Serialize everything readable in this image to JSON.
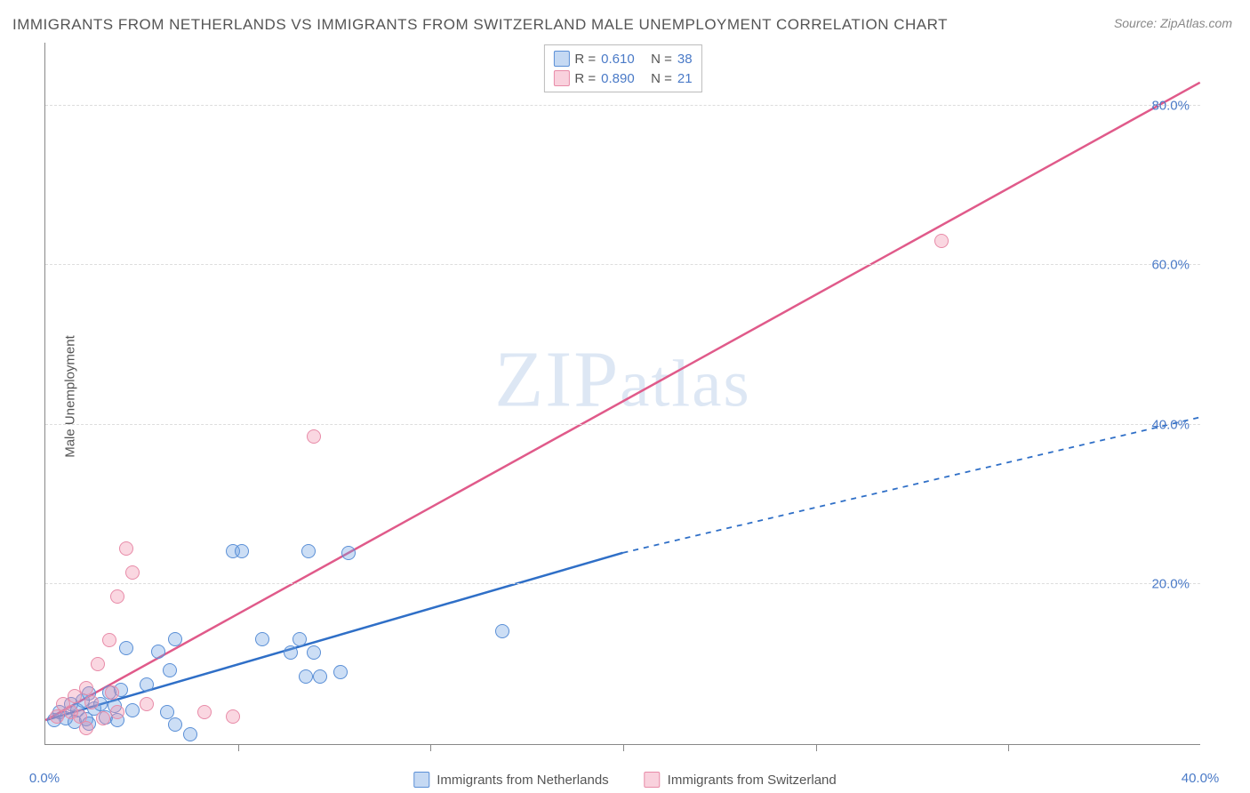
{
  "title": "IMMIGRANTS FROM NETHERLANDS VS IMMIGRANTS FROM SWITZERLAND MALE UNEMPLOYMENT CORRELATION CHART",
  "source": "Source: ZipAtlas.com",
  "watermark": "ZIPatlas",
  "chart": {
    "type": "scatter-with-regression",
    "ylabel": "Male Unemployment",
    "background_color": "#ffffff",
    "grid_color": "#dddddd",
    "axis_color": "#888888",
    "label_color": "#4a7ac7",
    "xlim": [
      0,
      40
    ],
    "ylim": [
      0,
      88
    ],
    "xtick_labels": [
      "0.0%",
      "40.0%"
    ],
    "xtick_positions": [
      0,
      40
    ],
    "xtick_minor": [
      6.67,
      13.33,
      20,
      26.67,
      33.33
    ],
    "ytick_labels": [
      "20.0%",
      "40.0%",
      "60.0%",
      "80.0%"
    ],
    "ytick_positions": [
      20,
      40,
      60,
      80
    ],
    "marker_size": 16,
    "series": [
      {
        "name": "Immigrants from Netherlands",
        "color_fill": "rgba(110,160,225,0.35)",
        "color_stroke": "#5a8fd6",
        "line_color": "#2f6fc7",
        "line_dash_extend": true,
        "R": "0.610",
        "N": "38",
        "regression": {
          "x1": 0,
          "y1": 3,
          "x2": 20,
          "y2": 24,
          "x2_ext": 40,
          "y2_ext": 41
        },
        "points": [
          [
            0.3,
            3
          ],
          [
            0.5,
            4
          ],
          [
            0.7,
            3.2
          ],
          [
            0.9,
            5
          ],
          [
            1,
            2.8
          ],
          [
            1.1,
            4.2
          ],
          [
            1.3,
            5.5
          ],
          [
            1.4,
            3.1
          ],
          [
            1.5,
            6.3
          ],
          [
            1.5,
            2.6
          ],
          [
            1.7,
            4.5
          ],
          [
            1.9,
            5
          ],
          [
            2.1,
            3.3
          ],
          [
            2.2,
            6.5
          ],
          [
            2.4,
            4.8
          ],
          [
            2.5,
            3
          ],
          [
            2.6,
            6.8
          ],
          [
            2.8,
            12
          ],
          [
            3.5,
            7.5
          ],
          [
            3.9,
            11.6
          ],
          [
            4.3,
            9.2
          ],
          [
            4.5,
            2.4
          ],
          [
            4.5,
            13.2
          ],
          [
            5.0,
            1.2
          ],
          [
            6.5,
            24.2
          ],
          [
            6.8,
            24.2
          ],
          [
            7.5,
            13.2
          ],
          [
            8.5,
            11.5
          ],
          [
            8.8,
            13.2
          ],
          [
            9.0,
            8.5
          ],
          [
            9.1,
            24.2
          ],
          [
            9.3,
            11.5
          ],
          [
            9.5,
            8.5
          ],
          [
            10.2,
            9.0
          ],
          [
            10.5,
            24
          ],
          [
            15.8,
            14.2
          ],
          [
            4.2,
            4.0
          ],
          [
            3.0,
            4.2
          ]
        ]
      },
      {
        "name": "Immigrants from Switzerland",
        "color_fill": "rgba(240,140,170,0.35)",
        "color_stroke": "#e88ba8",
        "line_color": "#e05a8a",
        "line_dash_extend": false,
        "R": "0.890",
        "N": "21",
        "regression": {
          "x1": 0,
          "y1": 3,
          "x2": 40,
          "y2": 83
        },
        "points": [
          [
            0.4,
            3.5
          ],
          [
            0.6,
            5.0
          ],
          [
            0.9,
            4.0
          ],
          [
            1.0,
            6.0
          ],
          [
            1.2,
            3.5
          ],
          [
            1.4,
            7.0
          ],
          [
            1.4,
            2.0
          ],
          [
            1.6,
            5.2
          ],
          [
            1.8,
            10.0
          ],
          [
            2.0,
            3.2
          ],
          [
            2.2,
            13.0
          ],
          [
            2.3,
            6.5
          ],
          [
            2.5,
            18.5
          ],
          [
            2.5,
            4.0
          ],
          [
            2.8,
            24.5
          ],
          [
            3.0,
            21.5
          ],
          [
            3.5,
            5.0
          ],
          [
            5.5,
            4.0
          ],
          [
            6.5,
            3.5
          ],
          [
            9.3,
            38.5
          ],
          [
            31.0,
            63.0
          ]
        ]
      }
    ],
    "legend_top": {
      "rows": [
        {
          "sq": "blue",
          "r_label": "R =",
          "r_val": "0.610",
          "n_label": "N =",
          "n_val": "38"
        },
        {
          "sq": "pink",
          "r_label": "R =",
          "r_val": "0.890",
          "n_label": "N =",
          "n_val": "21"
        }
      ]
    },
    "legend_bottom": [
      {
        "sq": "blue",
        "label": "Immigrants from Netherlands"
      },
      {
        "sq": "pink",
        "label": "Immigrants from Switzerland"
      }
    ]
  }
}
